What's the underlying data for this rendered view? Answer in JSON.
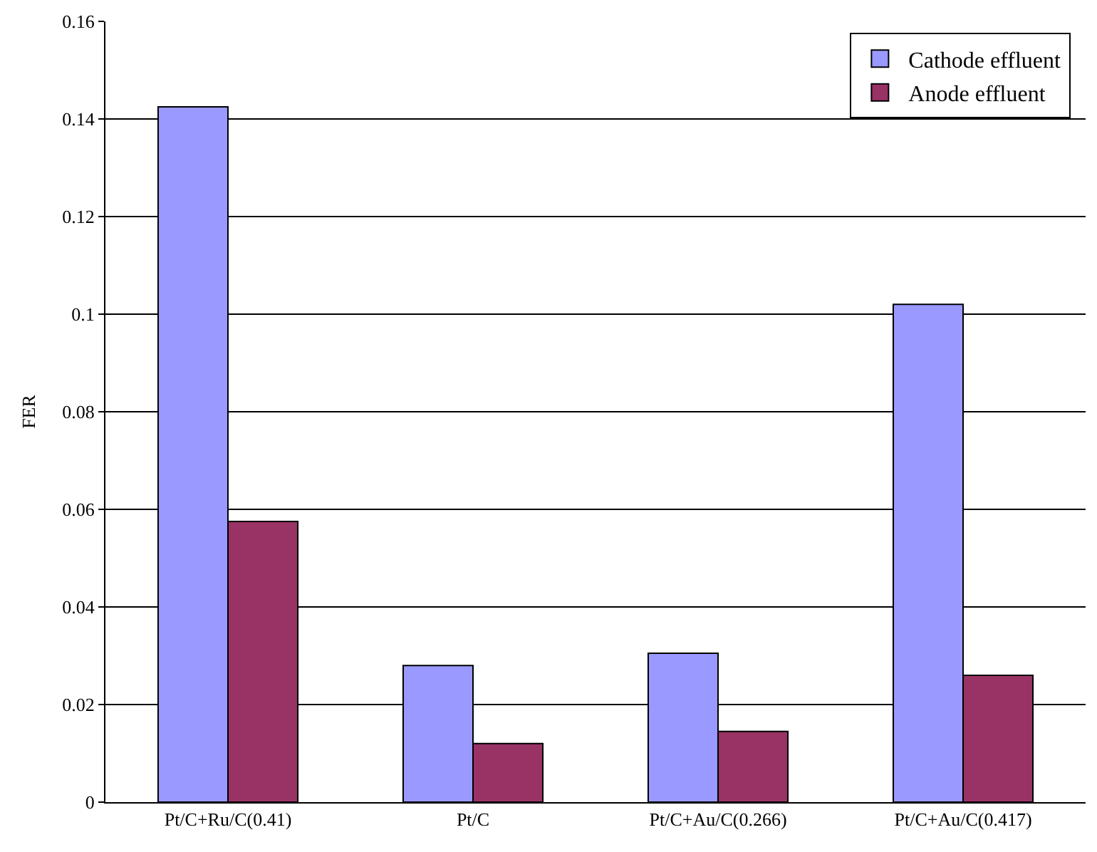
{
  "chart_data": {
    "type": "bar",
    "ylabel": "FER",
    "categories": [
      "Pt/C+Ru/C(0.41)",
      "Pt/C",
      "Pt/C+Au/C(0.266)",
      "Pt/C+Au/C(0.417)"
    ],
    "series": [
      {
        "name": "Cathode effluent",
        "color": "#9999ff",
        "values": [
          0.1425,
          0.028,
          0.0305,
          0.102
        ]
      },
      {
        "name": "Anode effluent",
        "color": "#993366",
        "values": [
          0.0575,
          0.012,
          0.0145,
          0.026
        ]
      }
    ],
    "ylim": [
      0,
      0.16
    ],
    "yticks": [
      0,
      0.02,
      0.04,
      0.06,
      0.08,
      0.1,
      0.12,
      0.14,
      0.16
    ],
    "grid": "y",
    "legend": "top right"
  }
}
